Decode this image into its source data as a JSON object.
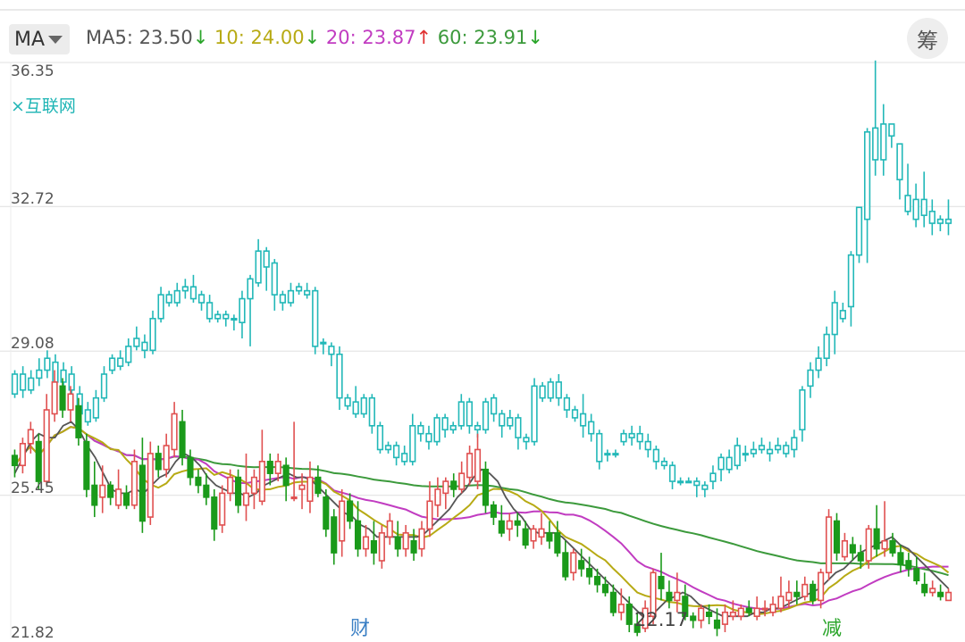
{
  "header": {
    "ma_selector": "MA",
    "legend": [
      {
        "text": "MA5: 23.50",
        "arrow": "↓",
        "color": "#555555",
        "arrow_color": "#2aa52a"
      },
      {
        "text": " 10: 24.00",
        "arrow": "↓",
        "color": "#b7aa14",
        "arrow_color": "#2aa52a"
      },
      {
        "text": " 20: 23.87",
        "arrow": "↑",
        "color": "#c13cc1",
        "arrow_color": "#e03030"
      },
      {
        "text": " 60: 23.91",
        "arrow": "↓",
        "color": "#3c9a3c",
        "arrow_color": "#2aa52a"
      }
    ],
    "chou_button": "筹"
  },
  "overlay_tag": "×互联网",
  "chart_data": {
    "type": "candlestick",
    "y_axis_labels": [
      "36.35",
      "32.72",
      "29.08",
      "25.45",
      "21.82"
    ],
    "ylim": [
      21.82,
      36.35
    ],
    "grid": true,
    "markers": [
      {
        "text": "财",
        "color": "#3a7fc4"
      },
      {
        "text": "22.17",
        "color": "#444444"
      },
      {
        "text": "减",
        "color": "#2aa52a"
      }
    ],
    "colors": {
      "up": "#e05050",
      "down": "#1a9a1a",
      "overlay": "#22b8b8",
      "ma5": "#555555",
      "ma10": "#b7aa14",
      "ma20": "#c13cc1",
      "ma60": "#3c9a3c"
    },
    "overlay_series_name": "互联网",
    "main_candles": [
      [
        26.45,
        26.2,
        26.6,
        25.9
      ],
      [
        26.2,
        26.75,
        26.9,
        26.0
      ],
      [
        26.75,
        27.1,
        27.3,
        26.5
      ],
      [
        26.8,
        25.8,
        27.0,
        25.6
      ],
      [
        25.8,
        27.6,
        28.0,
        25.7
      ],
      [
        27.5,
        28.3,
        28.6,
        27.3
      ],
      [
        28.2,
        27.6,
        28.4,
        27.4
      ],
      [
        27.6,
        28.0,
        28.2,
        27.3
      ],
      [
        27.7,
        26.9,
        27.9,
        26.7
      ],
      [
        26.8,
        25.6,
        27.0,
        25.4
      ],
      [
        25.7,
        25.2,
        26.3,
        24.9
      ],
      [
        25.4,
        25.7,
        26.2,
        25.0
      ],
      [
        25.7,
        25.4,
        25.8,
        25.2
      ],
      [
        25.2,
        25.6,
        26.1,
        25.1
      ],
      [
        25.5,
        25.2,
        25.7,
        25.1
      ],
      [
        25.2,
        26.3,
        26.6,
        25.1
      ],
      [
        26.2,
        24.8,
        26.9,
        24.5
      ],
      [
        24.9,
        26.5,
        26.8,
        24.7
      ],
      [
        26.5,
        26.1,
        26.7,
        25.9
      ],
      [
        26.1,
        26.7,
        27.0,
        25.9
      ],
      [
        26.6,
        27.5,
        27.8,
        26.4
      ],
      [
        27.3,
        26.4,
        27.6,
        26.2
      ],
      [
        26.4,
        25.9,
        26.6,
        25.7
      ],
      [
        25.9,
        25.7,
        26.1,
        25.5
      ],
      [
        25.7,
        25.4,
        26.0,
        25.2
      ],
      [
        25.4,
        24.6,
        25.6,
        24.3
      ],
      [
        24.7,
        25.5,
        25.7,
        24.5
      ],
      [
        25.5,
        25.9,
        26.1,
        25.3
      ],
      [
        25.9,
        25.2,
        26.1,
        25.0
      ],
      [
        25.2,
        25.5,
        26.5,
        24.8
      ],
      [
        25.5,
        25.9,
        26.1,
        25.1
      ],
      [
        25.3,
        26.3,
        27.1,
        25.2
      ],
      [
        26.3,
        26.0,
        26.5,
        25.7
      ],
      [
        26.0,
        26.3,
        26.5,
        25.8
      ],
      [
        26.2,
        25.7,
        26.4,
        25.3
      ],
      [
        25.4,
        25.4,
        27.3,
        25.3
      ],
      [
        25.6,
        25.7,
        26.0,
        25.1
      ],
      [
        25.3,
        25.9,
        26.3,
        25.0
      ],
      [
        25.9,
        25.5,
        26.2,
        25.4
      ],
      [
        25.4,
        24.6,
        25.6,
        24.4
      ],
      [
        24.9,
        24.0,
        25.1,
        23.7
      ],
      [
        24.3,
        25.3,
        25.6,
        23.9
      ],
      [
        25.3,
        24.8,
        25.5,
        24.6
      ],
      [
        24.8,
        24.1,
        25.3,
        23.9
      ],
      [
        24.1,
        24.4,
        24.7,
        23.9
      ],
      [
        24.3,
        24.0,
        24.8,
        23.7
      ],
      [
        23.8,
        24.5,
        24.7,
        23.6
      ],
      [
        24.4,
        24.8,
        25.0,
        24.2
      ],
      [
        24.4,
        24.1,
        24.8,
        23.9
      ],
      [
        24.1,
        24.5,
        24.7,
        23.9
      ],
      [
        24.3,
        24.0,
        24.6,
        23.8
      ],
      [
        24.1,
        24.6,
        24.8,
        23.9
      ],
      [
        24.6,
        25.3,
        25.8,
        24.4
      ],
      [
        25.2,
        25.6,
        25.9,
        24.9
      ],
      [
        25.5,
        25.8,
        25.9,
        25.1
      ],
      [
        25.8,
        25.6,
        26.0,
        25.4
      ],
      [
        25.6,
        26.0,
        26.3,
        25.5
      ],
      [
        25.9,
        26.5,
        26.7,
        25.7
      ],
      [
        25.8,
        26.6,
        27.0,
        25.6
      ],
      [
        26.1,
        25.2,
        26.3,
        25.0
      ],
      [
        25.2,
        24.9,
        25.3,
        24.7
      ],
      [
        24.8,
        24.5,
        25.2,
        24.4
      ],
      [
        24.6,
        24.8,
        25.0,
        24.3
      ],
      [
        24.8,
        24.7,
        25.0,
        24.4
      ],
      [
        24.6,
        24.2,
        24.8,
        24.1
      ],
      [
        24.3,
        24.6,
        24.7,
        24.1
      ],
      [
        24.4,
        24.6,
        25.0,
        24.2
      ],
      [
        24.5,
        24.3,
        24.8,
        24.1
      ],
      [
        24.5,
        24.0,
        24.8,
        23.9
      ],
      [
        24.0,
        23.4,
        24.3,
        23.3
      ],
      [
        23.5,
        24.0,
        24.1,
        23.3
      ],
      [
        23.8,
        23.6,
        24.1,
        23.4
      ],
      [
        23.6,
        23.4,
        23.9,
        23.2
      ],
      [
        23.4,
        23.2,
        23.6,
        23.0
      ],
      [
        23.2,
        23.0,
        23.4,
        22.9
      ],
      [
        23.0,
        22.5,
        23.2,
        22.4
      ],
      [
        22.5,
        22.7,
        23.1,
        22.3
      ],
      [
        22.7,
        22.2,
        22.9,
        22.0
      ],
      [
        22.2,
        22.0,
        22.5,
        21.9
      ],
      [
        22.1,
        22.6,
        22.8,
        22.0
      ],
      [
        22.4,
        23.5,
        23.6,
        22.2
      ],
      [
        23.4,
        23.1,
        24.0,
        22.8
      ],
      [
        23.0,
        22.8,
        23.3,
        22.6
      ],
      [
        22.8,
        23.0,
        23.5,
        22.5
      ],
      [
        22.9,
        22.4,
        23.2,
        22.3
      ],
      [
        22.4,
        22.3,
        22.5,
        22.1
      ],
      [
        22.3,
        22.6,
        22.7,
        22.1
      ],
      [
        22.5,
        22.4,
        22.7,
        22.2
      ],
      [
        22.3,
        22.1,
        22.6,
        21.9
      ],
      [
        22.2,
        22.5,
        22.7,
        22.0
      ],
      [
        22.4,
        22.5,
        22.8,
        22.3
      ],
      [
        22.4,
        22.6,
        22.7,
        22.3
      ],
      [
        22.6,
        22.5,
        22.8,
        22.4
      ],
      [
        22.4,
        22.6,
        22.9,
        22.3
      ],
      [
        22.6,
        22.6,
        22.8,
        22.4
      ],
      [
        22.5,
        22.7,
        22.9,
        22.4
      ],
      [
        22.6,
        22.9,
        23.4,
        22.5
      ],
      [
        22.8,
        23.0,
        23.3,
        22.6
      ],
      [
        23.0,
        22.9,
        23.3,
        22.7
      ],
      [
        22.9,
        23.2,
        23.4,
        22.8
      ],
      [
        23.2,
        22.8,
        23.3,
        22.7
      ],
      [
        22.8,
        23.5,
        23.6,
        22.6
      ],
      [
        23.5,
        24.9,
        25.1,
        23.3
      ],
      [
        24.8,
        24.0,
        25.0,
        23.8
      ],
      [
        23.9,
        24.3,
        24.5,
        23.8
      ],
      [
        24.2,
        24.0,
        24.4,
        23.8
      ],
      [
        24.0,
        23.8,
        24.2,
        23.6
      ],
      [
        23.8,
        24.6,
        24.7,
        23.6
      ],
      [
        24.6,
        24.1,
        25.2,
        23.9
      ],
      [
        24.1,
        24.3,
        25.3,
        23.9
      ],
      [
        24.3,
        24.0,
        24.5,
        23.9
      ],
      [
        24.0,
        23.7,
        24.2,
        23.5
      ],
      [
        23.8,
        23.6,
        24.0,
        23.4
      ],
      [
        23.6,
        23.3,
        23.9,
        23.2
      ],
      [
        23.2,
        23.0,
        23.5,
        22.9
      ],
      [
        23.0,
        23.1,
        23.3,
        22.9
      ],
      [
        23.0,
        22.9,
        23.2,
        22.8
      ],
      [
        22.8,
        23.0,
        23.1,
        22.8
      ]
    ],
    "overlay_candles": [
      [
        28.0,
        28.5,
        28.6,
        27.9
      ],
      [
        28.5,
        28.1,
        28.7,
        27.9
      ],
      [
        28.1,
        28.4,
        28.6,
        28.0
      ],
      [
        28.4,
        28.6,
        28.9,
        28.2
      ],
      [
        28.6,
        28.9,
        29.1,
        28.4
      ],
      [
        28.8,
        28.3,
        29.0,
        28.1
      ],
      [
        28.3,
        28.6,
        28.8,
        28.2
      ],
      [
        28.5,
        28.1,
        28.7,
        27.9
      ],
      [
        28.0,
        27.5,
        28.2,
        27.3
      ],
      [
        27.6,
        27.3,
        27.8,
        27.2
      ],
      [
        27.4,
        27.9,
        28.1,
        27.3
      ],
      [
        27.9,
        28.5,
        28.7,
        27.8
      ],
      [
        28.6,
        28.9,
        29.0,
        28.5
      ],
      [
        28.9,
        28.7,
        29.1,
        28.6
      ],
      [
        28.8,
        29.2,
        29.4,
        28.7
      ],
      [
        29.2,
        29.4,
        29.7,
        29.1
      ],
      [
        29.3,
        29.1,
        29.5,
        28.9
      ],
      [
        29.1,
        29.9,
        30.1,
        29.0
      ],
      [
        29.9,
        30.5,
        30.7,
        29.8
      ],
      [
        30.5,
        30.3,
        30.6,
        30.2
      ],
      [
        30.3,
        30.6,
        30.8,
        30.2
      ],
      [
        30.6,
        30.7,
        30.9,
        30.4
      ],
      [
        30.7,
        30.4,
        31.0,
        30.3
      ],
      [
        30.5,
        30.3,
        30.6,
        30.1
      ],
      [
        30.3,
        29.9,
        30.5,
        29.8
      ],
      [
        29.9,
        30.0,
        30.1,
        29.8
      ],
      [
        30.0,
        29.9,
        30.1,
        29.7
      ],
      [
        29.9,
        29.9,
        30.0,
        29.6
      ],
      [
        29.8,
        30.4,
        30.6,
        29.4
      ],
      [
        30.4,
        30.9,
        31.0,
        29.2
      ],
      [
        30.8,
        31.6,
        31.9,
        30.7
      ],
      [
        31.6,
        31.2,
        31.7,
        30.6
      ],
      [
        31.3,
        30.5,
        31.4,
        30.1
      ],
      [
        30.5,
        30.3,
        30.6,
        30.1
      ],
      [
        30.3,
        30.6,
        30.8,
        30.2
      ],
      [
        30.6,
        30.7,
        30.8,
        30.5
      ],
      [
        30.6,
        30.5,
        30.8,
        30.4
      ],
      [
        30.6,
        29.2,
        30.7,
        29.0
      ],
      [
        29.3,
        29.3,
        29.4,
        29.0
      ],
      [
        29.2,
        29.0,
        29.3,
        28.7
      ],
      [
        29.0,
        27.9,
        29.2,
        27.6
      ],
      [
        27.9,
        27.7,
        28.0,
        27.6
      ],
      [
        27.8,
        27.5,
        28.2,
        27.4
      ],
      [
        27.5,
        27.9,
        28.0,
        27.4
      ],
      [
        27.9,
        27.2,
        28.0,
        27.0
      ],
      [
        27.2,
        26.6,
        27.3,
        26.5
      ],
      [
        26.7,
        26.6,
        26.8,
        26.5
      ],
      [
        26.7,
        26.4,
        26.8,
        26.2
      ],
      [
        26.5,
        26.3,
        26.7,
        26.2
      ],
      [
        26.3,
        27.2,
        27.5,
        26.2
      ],
      [
        27.2,
        27.0,
        27.3,
        26.8
      ],
      [
        27.0,
        26.8,
        27.2,
        26.6
      ],
      [
        26.8,
        27.4,
        27.5,
        26.7
      ],
      [
        27.4,
        27.1,
        27.5,
        26.9
      ],
      [
        27.1,
        27.2,
        27.3,
        27.0
      ],
      [
        27.2,
        27.8,
        28.0,
        27.1
      ],
      [
        27.8,
        27.2,
        27.9,
        27.0
      ],
      [
        27.2,
        27.1,
        27.3,
        26.9
      ],
      [
        27.1,
        27.8,
        27.9,
        27.0
      ],
      [
        27.9,
        27.5,
        28.0,
        27.3
      ],
      [
        27.5,
        27.2,
        27.6,
        26.9
      ],
      [
        27.2,
        27.4,
        27.6,
        27.1
      ],
      [
        27.4,
        26.9,
        27.5,
        26.6
      ],
      [
        26.9,
        26.8,
        27.0,
        26.6
      ],
      [
        26.8,
        28.2,
        28.4,
        26.7
      ],
      [
        28.2,
        27.9,
        28.3,
        27.8
      ],
      [
        27.9,
        28.3,
        28.4,
        27.8
      ],
      [
        28.3,
        27.9,
        28.5,
        27.7
      ],
      [
        27.9,
        27.6,
        28.0,
        27.4
      ],
      [
        27.6,
        27.4,
        27.7,
        27.3
      ],
      [
        27.5,
        27.2,
        28.0,
        26.9
      ],
      [
        27.3,
        27.0,
        27.5,
        26.8
      ],
      [
        27.0,
        26.3,
        27.1,
        26.1
      ],
      [
        26.5,
        26.5,
        26.6,
        26.3
      ],
      [
        26.5,
        26.5,
        26.6,
        26.4
      ],
      [
        26.8,
        27.0,
        27.1,
        26.7
      ],
      [
        27.0,
        26.9,
        27.2,
        26.7
      ],
      [
        27.0,
        26.8,
        27.2,
        26.6
      ],
      [
        26.8,
        26.6,
        27.0,
        26.4
      ],
      [
        26.6,
        26.3,
        26.7,
        26.1
      ],
      [
        26.3,
        26.2,
        26.4,
        26.1
      ],
      [
        26.2,
        25.8,
        26.3,
        25.6
      ],
      [
        25.8,
        25.8,
        25.9,
        25.7
      ],
      [
        25.8,
        25.8,
        25.9,
        25.8
      ],
      [
        25.8,
        25.7,
        25.9,
        25.4
      ],
      [
        25.7,
        25.6,
        25.8,
        25.4
      ],
      [
        25.8,
        26.0,
        26.2,
        25.6
      ],
      [
        26.1,
        26.4,
        26.5,
        25.8
      ],
      [
        26.4,
        26.1,
        26.6,
        26.0
      ],
      [
        26.2,
        26.7,
        26.9,
        26.1
      ],
      [
        26.5,
        26.5,
        26.7,
        26.3
      ],
      [
        26.5,
        26.6,
        26.8,
        26.4
      ],
      [
        26.6,
        26.7,
        26.9,
        26.5
      ],
      [
        26.6,
        26.5,
        26.8,
        26.3
      ],
      [
        26.6,
        26.7,
        26.9,
        26.5
      ],
      [
        26.7,
        26.5,
        26.8,
        26.4
      ],
      [
        26.6,
        26.9,
        27.1,
        26.4
      ],
      [
        27.1,
        28.1,
        28.2,
        26.8
      ],
      [
        28.2,
        28.6,
        28.8,
        27.9
      ],
      [
        28.6,
        28.9,
        29.2,
        28.4
      ],
      [
        28.9,
        29.5,
        29.7,
        28.7
      ],
      [
        29.5,
        30.3,
        30.6,
        29.0
      ],
      [
        29.9,
        30.1,
        30.3,
        29.8
      ],
      [
        30.2,
        31.5,
        31.6,
        29.7
      ],
      [
        31.5,
        32.7,
        32.7,
        31.3
      ],
      [
        32.4,
        34.6,
        34.7,
        31.3
      ],
      [
        34.7,
        33.9,
        36.4,
        33.5
      ],
      [
        33.9,
        34.8,
        35.3,
        33.5
      ],
      [
        34.8,
        34.5,
        34.8,
        34.2
      ],
      [
        34.3,
        33.4,
        34.0,
        32.9
      ],
      [
        33.0,
        32.6,
        33.8,
        32.5
      ],
      [
        32.9,
        32.4,
        33.3,
        32.2
      ],
      [
        32.5,
        32.9,
        33.6,
        32.2
      ],
      [
        32.6,
        32.3,
        32.9,
        32.0
      ],
      [
        32.4,
        32.3,
        32.5,
        32.1
      ],
      [
        32.3,
        32.4,
        32.9,
        32.0
      ]
    ],
    "ma_lines": {
      "ma5": [
        26.0,
        26.4,
        26.8,
        27.0,
        26.9,
        26.9,
        27.2,
        27.3,
        27.1,
        26.7,
        26.4,
        26.0,
        25.6,
        25.5,
        25.5,
        25.6,
        25.5,
        25.7,
        25.9,
        26.0,
        26.3,
        26.5,
        26.4,
        26.2,
        25.9,
        25.7,
        25.6,
        25.5,
        25.5,
        25.4,
        25.5,
        25.7,
        25.8,
        25.9,
        26.0,
        25.9,
        25.9,
        25.8,
        25.6,
        25.4,
        25.2,
        25.0,
        24.9,
        24.7,
        24.6,
        24.4,
        24.4,
        24.4,
        24.4,
        24.4,
        24.4,
        24.5,
        24.7,
        24.9,
        25.1,
        25.4,
        25.6,
        25.9,
        26.1,
        26.0,
        25.8,
        25.4,
        25.1,
        24.9,
        24.6,
        24.5,
        24.5,
        24.5,
        24.4,
        24.2,
        24.0,
        23.8,
        23.6,
        23.4,
        23.2,
        23.0,
        22.8,
        22.6,
        22.4,
        22.4,
        22.6,
        22.8,
        22.9,
        23.0,
        22.9,
        22.7,
        22.6,
        22.5,
        22.4,
        22.4,
        22.4,
        22.4,
        22.5,
        22.5,
        22.6,
        22.6,
        22.7,
        22.8,
        22.9,
        23.0,
        23.1,
        23.3,
        23.5,
        23.6,
        23.8,
        24.0,
        24.1,
        24.2,
        24.3,
        24.4,
        24.2,
        24.1,
        23.9,
        23.7,
        23.5,
        23.3,
        23.1
      ]
    }
  }
}
